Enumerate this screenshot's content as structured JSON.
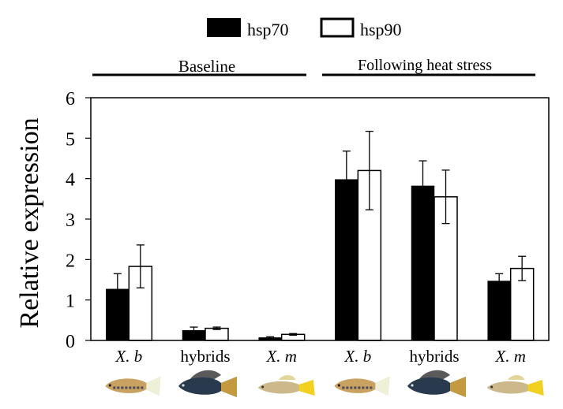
{
  "chart_data": {
    "type": "bar",
    "title": "",
    "xlabel": "",
    "ylabel": "Relative expression",
    "ylim": [
      0,
      6
    ],
    "yticks": [
      0,
      1,
      2,
      3,
      4,
      5,
      6
    ],
    "grid": false,
    "legend": {
      "placement": "top-center",
      "entries": [
        {
          "name": "hsp70",
          "fill": "#000000"
        },
        {
          "name": "hsp90",
          "fill": "#ffffff"
        }
      ]
    },
    "groups": [
      {
        "label": "Baseline",
        "categories": [
          "X. b",
          "hybrids",
          "X. m"
        ]
      },
      {
        "label": "Following heat stress",
        "categories": [
          "X. b",
          "hybrids",
          "X. m"
        ]
      }
    ],
    "categories": [
      "X. b",
      "hybrids",
      "X. m",
      "X. b",
      "hybrids",
      "X. m"
    ],
    "category_italic": [
      true,
      false,
      true,
      true,
      false,
      true
    ],
    "series": [
      {
        "name": "hsp70",
        "values": [
          1.27,
          0.25,
          0.07,
          3.98,
          3.82,
          1.47
        ],
        "error": [
          0.38,
          0.08,
          0.02,
          0.7,
          0.62,
          0.18
        ]
      },
      {
        "name": "hsp90",
        "values": [
          1.83,
          0.3,
          0.15,
          4.2,
          3.55,
          1.78
        ],
        "error": [
          0.53,
          0.03,
          0.02,
          0.97,
          0.66,
          0.3
        ]
      }
    ],
    "annotations": [
      "fish photo: X. birchmanni",
      "fish photo: hybrid",
      "fish photo: X. malinche"
    ]
  }
}
